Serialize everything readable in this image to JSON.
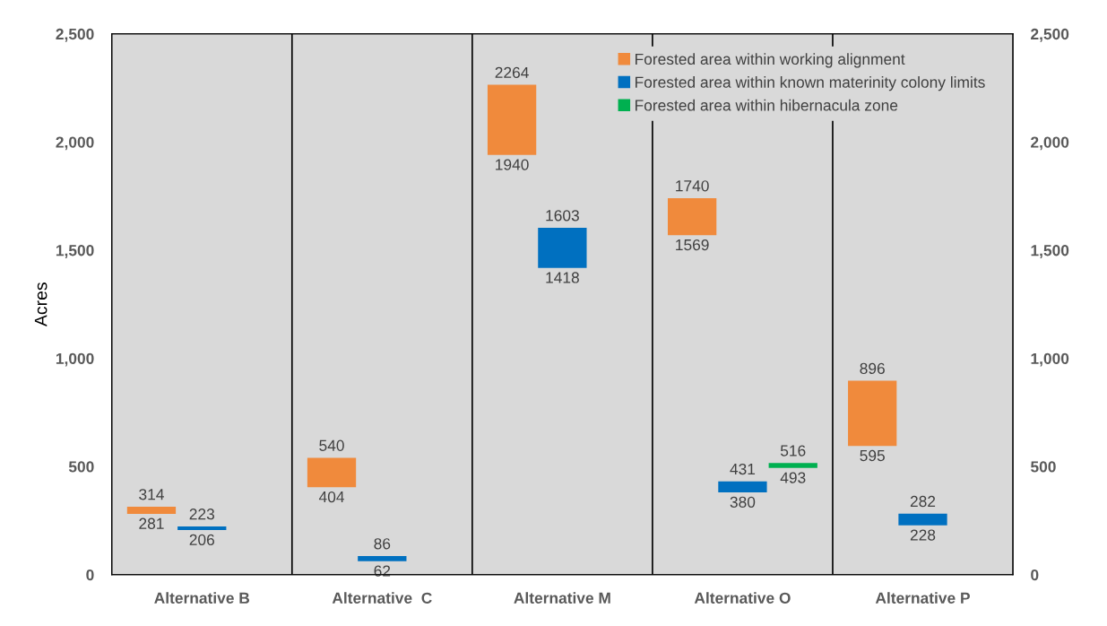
{
  "chart_data": {
    "type": "bar",
    "ylabel": "Acres",
    "categories": [
      "Alternative B",
      "Alternative  C",
      "Alternative M",
      "Alternative O",
      "Alternative P"
    ],
    "series": [
      {
        "name": "Forested area within working alignment",
        "color": "#f08a3c",
        "base": [
          281,
          404,
          1940,
          1569,
          595
        ],
        "values": [
          33,
          136,
          324,
          171,
          301
        ]
      },
      {
        "name": "Forested area within known materinity colony limits",
        "color": "#0070c0",
        "base": [
          206,
          62,
          1418,
          380,
          228
        ],
        "values": [
          17,
          24,
          185,
          51,
          54
        ]
      },
      {
        "name": "Forested area within hibernacula zone",
        "color": "#00b050",
        "base": [
          null,
          null,
          null,
          493,
          null
        ],
        "values": [
          null,
          null,
          null,
          23,
          null
        ]
      }
    ],
    "annotations": [
      "314",
      "281",
      "223",
      "206",
      "540",
      "404",
      "86",
      "62",
      "2264",
      "1940",
      "1603",
      "1418",
      "1740",
      "1569",
      "431",
      "380",
      "516",
      "493",
      "896",
      "595",
      "282",
      "228"
    ],
    "ylim": [
      0,
      2500
    ],
    "yticks": [
      0,
      500,
      {
        "value": 1000,
        "label": "1,000"
      },
      {
        "value": 1500,
        "label": "1,500"
      },
      {
        "value": 2000,
        "label": "2,000"
      },
      {
        "value": 2500,
        "label": "2,500"
      }
    ],
    "y2lim": [
      0,
      2500
    ],
    "y2ticks": [
      0,
      500,
      {
        "value": 1000,
        "label": "1,000"
      },
      {
        "value": 1500,
        "label": "1,500"
      },
      {
        "value": 2000,
        "label": "2,000"
      },
      {
        "value": 2500,
        "label": "2,500"
      }
    ],
    "grid": "x",
    "legend": "top right"
  }
}
